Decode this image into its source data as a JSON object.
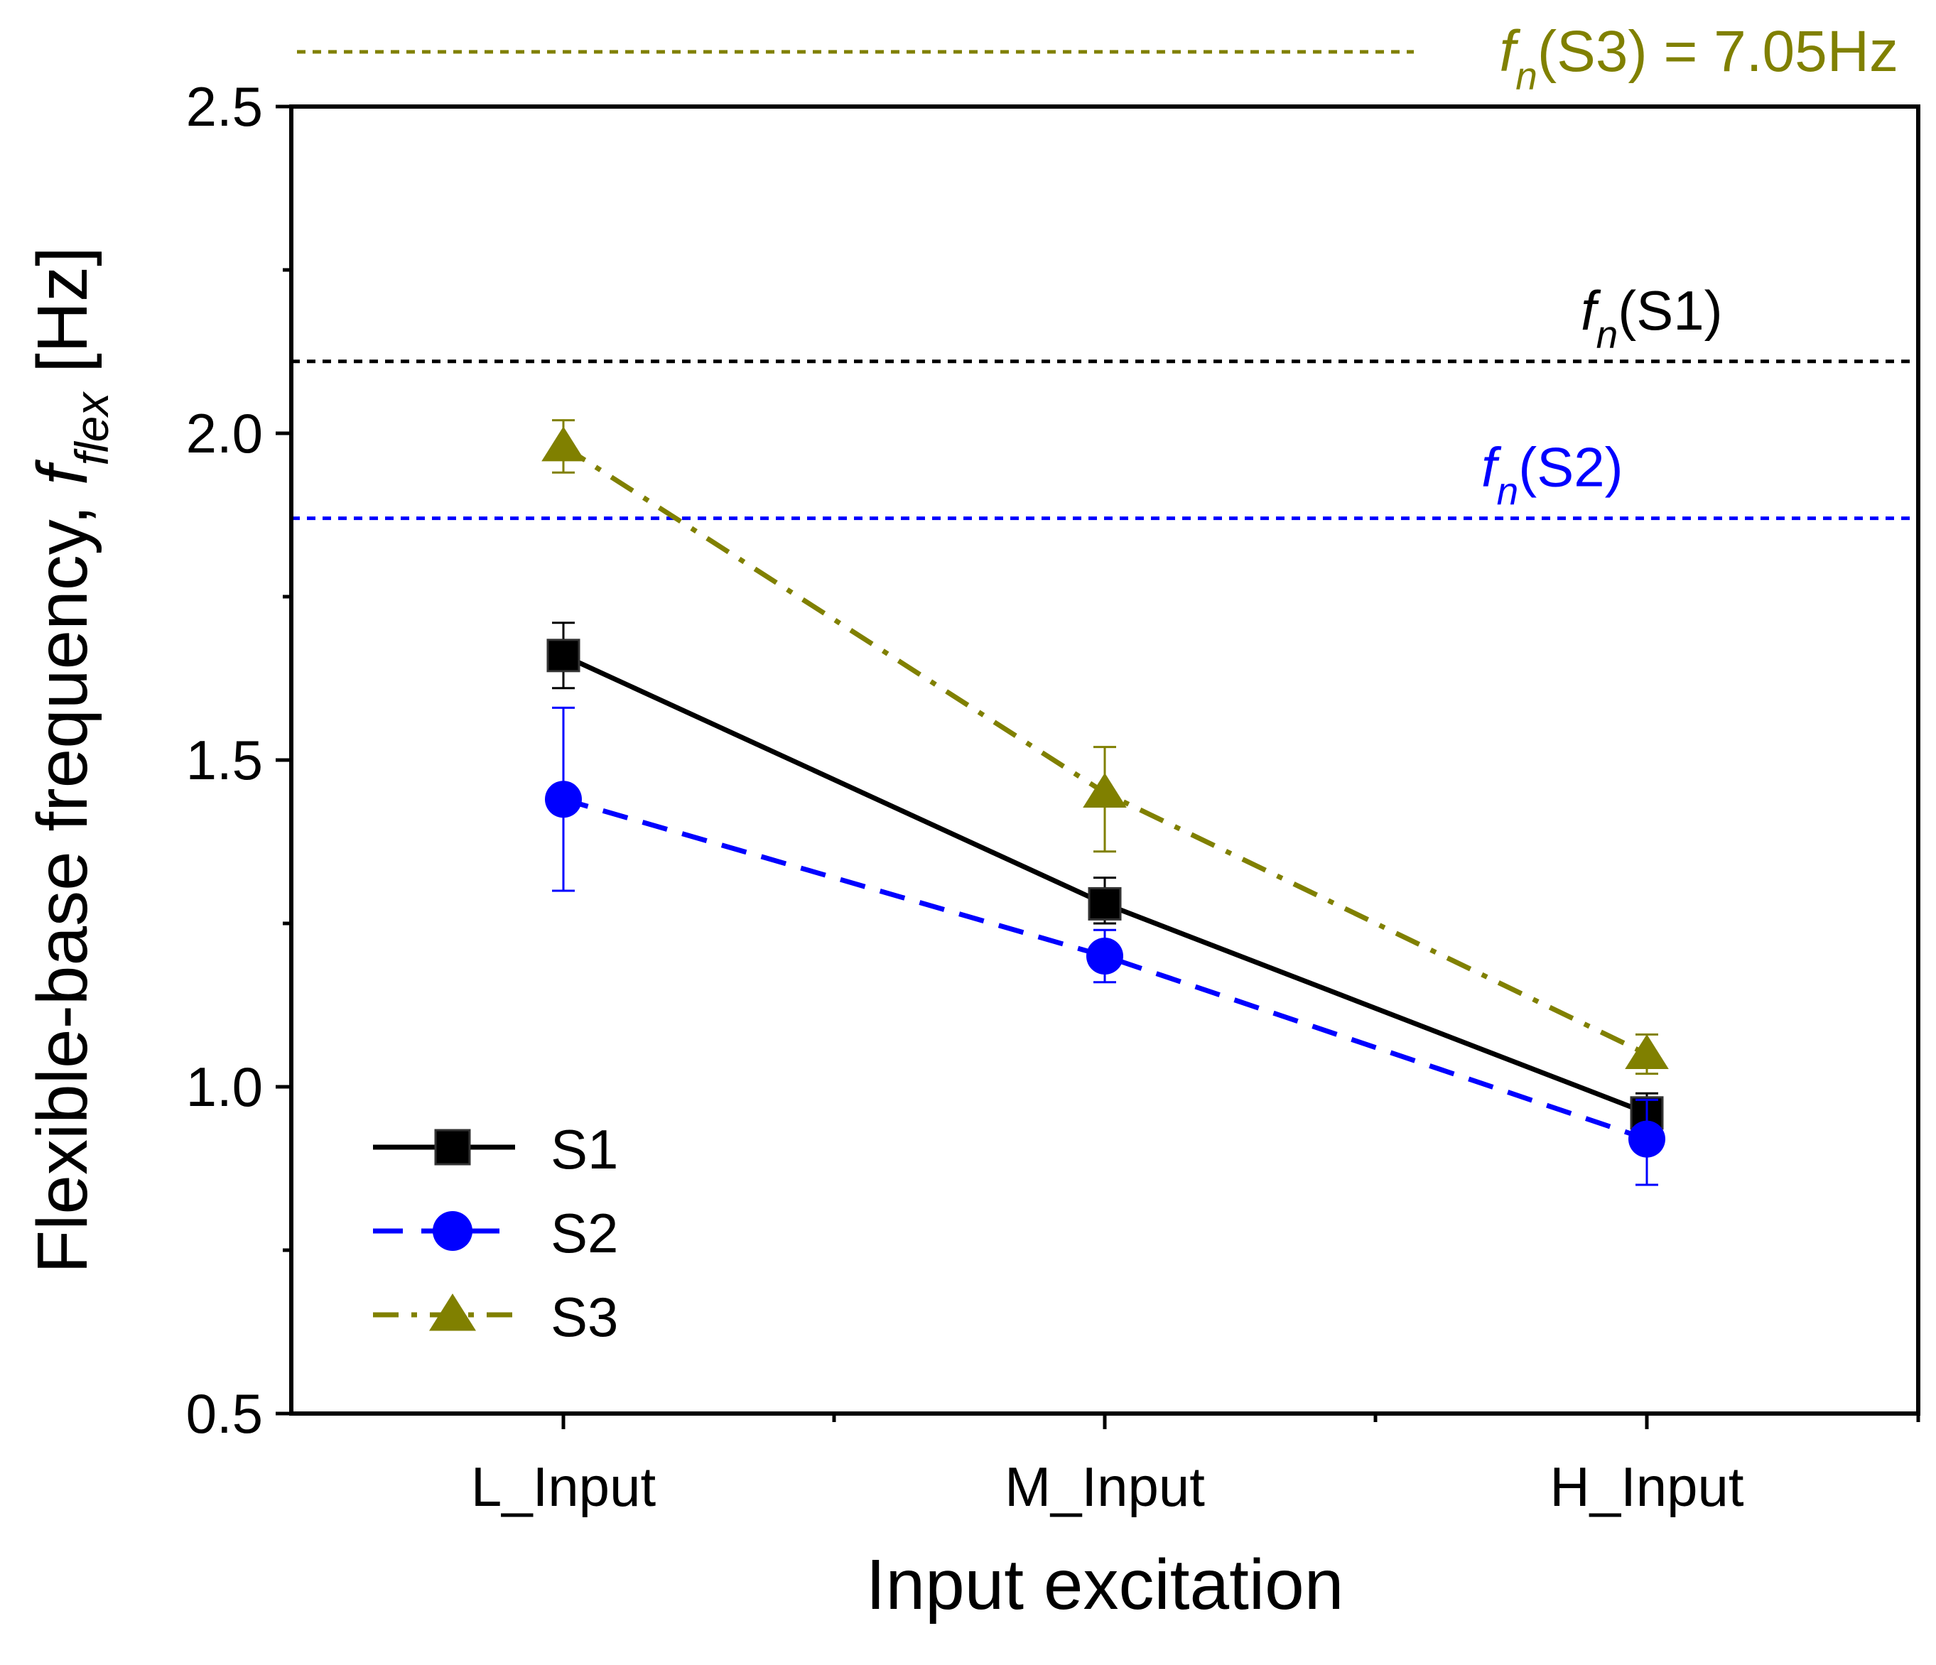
{
  "chart_data": {
    "type": "line",
    "xlabel": "Input excitation",
    "ylabel": {
      "main": "Flexible-base frequency, ",
      "symbol": "f",
      "subscript": "flex",
      "unit": " [Hz]"
    },
    "categories": [
      "L_Input",
      "M_Input",
      "H_Input"
    ],
    "ylim": [
      0.5,
      2.5
    ],
    "yticks": [
      0.5,
      1.0,
      1.5,
      2.0,
      2.5
    ],
    "ytick_labels": [
      "0.5",
      "1.0",
      "1.5",
      "2.0",
      "2.5"
    ],
    "series": [
      {
        "name": "S1",
        "color": "#000000",
        "marker": "square",
        "line_style": "solid",
        "values": [
          1.66,
          1.28,
          0.96
        ],
        "error_low": [
          1.61,
          1.25,
          0.93
        ],
        "error_high": [
          1.71,
          1.32,
          0.99
        ]
      },
      {
        "name": "S2",
        "color": "#0000ff",
        "marker": "circle",
        "line_style": "dashed",
        "values": [
          1.44,
          1.2,
          0.92
        ],
        "error_low": [
          1.3,
          1.16,
          0.85
        ],
        "error_high": [
          1.58,
          1.24,
          0.98
        ]
      },
      {
        "name": "S3",
        "color": "#808000",
        "marker": "triangle",
        "line_style": "dashdot",
        "values": [
          1.98,
          1.45,
          1.05
        ],
        "error_low": [
          1.94,
          1.36,
          1.02
        ],
        "error_high": [
          2.02,
          1.52,
          1.08
        ]
      }
    ],
    "reference_lines": [
      {
        "series": "S1",
        "value": 2.11,
        "color": "#000000",
        "label_symbol": "f",
        "label_subscript": "n",
        "label_text": "(S1)"
      },
      {
        "series": "S2",
        "value": 1.87,
        "color": "#0000ff",
        "label_symbol": "f",
        "label_subscript": "n",
        "label_text": "(S2)"
      },
      {
        "series": "S3",
        "value": 7.05,
        "color": "#808000",
        "label_symbol": "f",
        "label_subscript": "n",
        "label_text": "(S3) = 7.05Hz",
        "off_scale": true
      }
    ],
    "legend_position": "bottom-left"
  }
}
